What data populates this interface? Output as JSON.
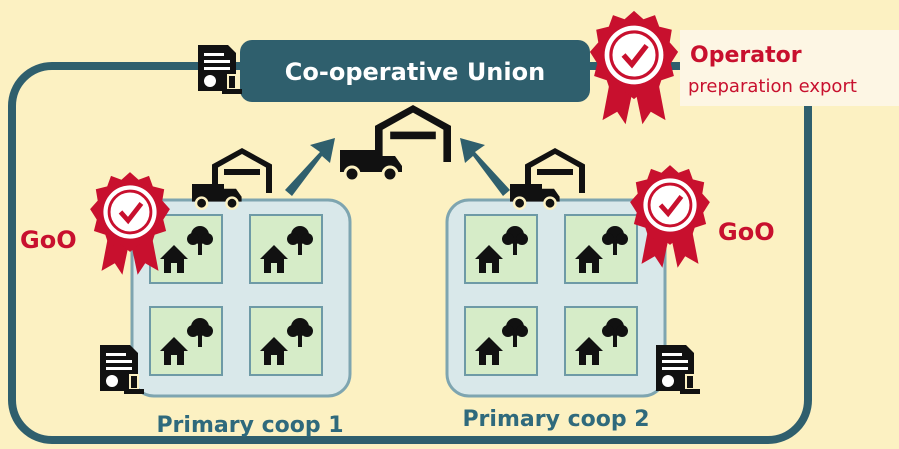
{
  "header": {
    "title": "Co-operative Union"
  },
  "operator": {
    "title": "Operator",
    "subtitle": "preparation export"
  },
  "certificates": [
    "GoO",
    "GoO"
  ],
  "coops": [
    {
      "label": "Primary coop 1"
    },
    {
      "label": "Primary coop 2"
    }
  ]
}
